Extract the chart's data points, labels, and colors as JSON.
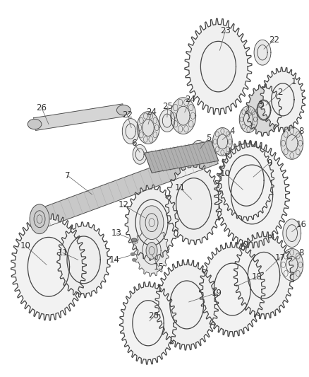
{
  "background_color": "#ffffff",
  "line_color": "#444444",
  "label_color": "#333333",
  "label_fontsize": 8.5,
  "fig_width": 4.38,
  "fig_height": 5.33,
  "dpi": 100
}
